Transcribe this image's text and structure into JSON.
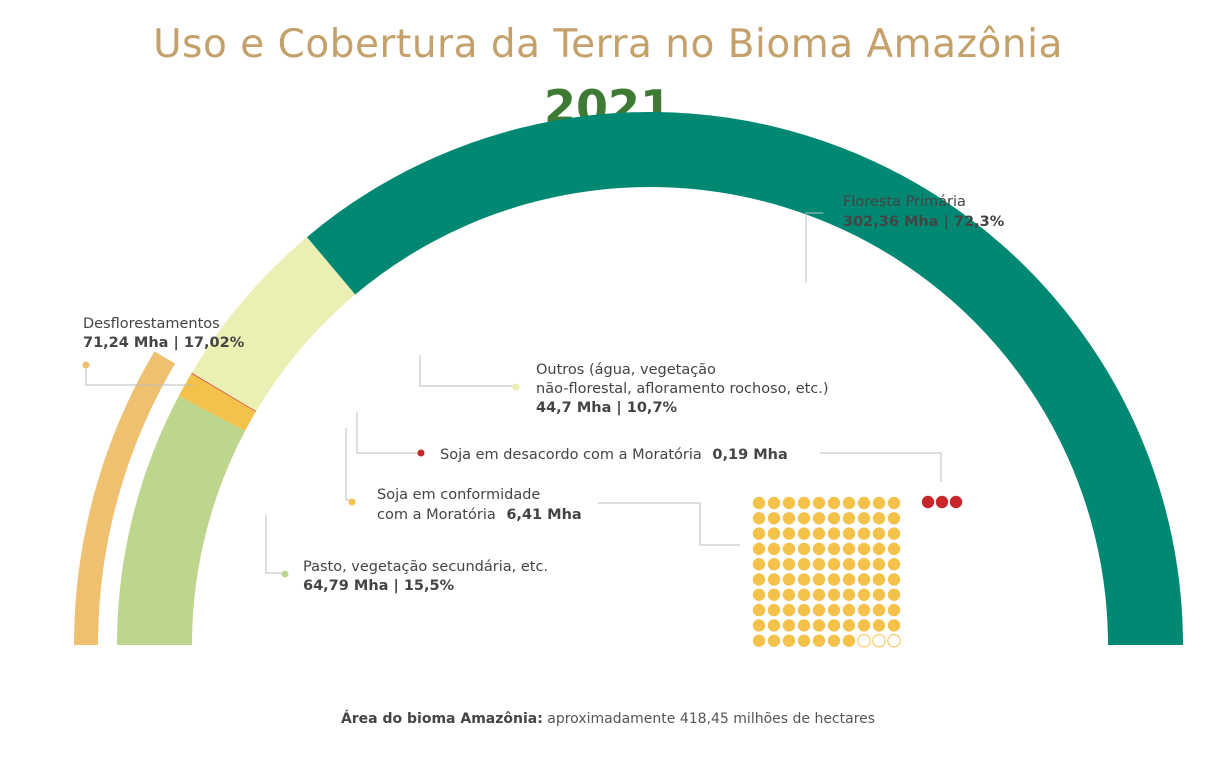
{
  "header": {
    "title": "Uso e Cobertura da Terra no Bioma Amazônia",
    "year": "2021"
  },
  "chart_data": {
    "type": "semi-donut",
    "total_label": "Área do bioma Amazônia:",
    "total_text": "aproximadamente 418,45 milhões de hectares",
    "segments": [
      {
        "key": "pasto",
        "label": "Pasto, vegetação secundária, etc.",
        "value_text": "64,79 Mha | 15,5%",
        "mha": 64.79,
        "pct": 15.5,
        "color": "#bdd68e"
      },
      {
        "key": "soja_conf",
        "label_line1": "Soja em conformidade",
        "label_line2": "com a Moratória",
        "value_text": "6,41 Mha",
        "mha": 6.41,
        "color": "#f4c24a"
      },
      {
        "key": "soja_desac",
        "label": "Soja em desacordo com a Moratória",
        "value_text": "0,19 Mha",
        "mha": 0.19,
        "color": "#c9262c"
      },
      {
        "key": "outros",
        "label_line1": "Outros (água, vegetação",
        "label_line2": "não-florestal, afloramento rochoso, etc.)",
        "value_text": "44,7 Mha | 10,7%",
        "mha": 44.7,
        "pct": 10.7,
        "color": "#ecefb3"
      },
      {
        "key": "floresta",
        "label": "Floresta Primária",
        "value_text": "302,36 Mha | 72,3%",
        "mha": 302.36,
        "pct": 72.3,
        "color": "#008873"
      }
    ],
    "deforestation": {
      "label": "Desflorestamentos",
      "value_text": "71,24 Mha | 17,02%",
      "mha": 71.24,
      "pct": 17.02,
      "color": "#eec070"
    },
    "dot_matrix": {
      "rows": 10,
      "cols": 10,
      "filled": 97,
      "empty": 3,
      "filled_color": "#f4c24a",
      "empty_color": "#ffffff",
      "red_dots": 3,
      "red_color": "#c9262c"
    }
  }
}
